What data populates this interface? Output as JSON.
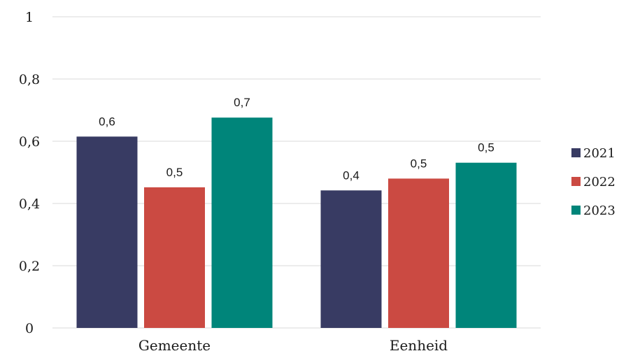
{
  "chart_data": {
    "type": "bar",
    "categories": [
      "Gemeente",
      "Eenheid"
    ],
    "series": [
      {
        "name": "2021",
        "color": "#383b63",
        "values": [
          0.615,
          0.442
        ],
        "labels": [
          "0,6",
          "0,4"
        ]
      },
      {
        "name": "2022",
        "color": "#cb4a42",
        "values": [
          0.452,
          0.48
        ],
        "labels": [
          "0,5",
          "0,5"
        ]
      },
      {
        "name": "2023",
        "color": "#00857a",
        "values": [
          0.676,
          0.531
        ],
        "labels": [
          "0,7",
          "0,5"
        ]
      }
    ],
    "yticks": [
      {
        "value": 0,
        "label": "0"
      },
      {
        "value": 0.2,
        "label": "0,2"
      },
      {
        "value": 0.4,
        "label": "0,4"
      },
      {
        "value": 0.6,
        "label": "0,6"
      },
      {
        "value": 0.8,
        "label": "0,8"
      },
      {
        "value": 1,
        "label": "1"
      }
    ],
    "ylim": [
      0,
      1
    ],
    "grid": true,
    "legend_position": "right"
  }
}
